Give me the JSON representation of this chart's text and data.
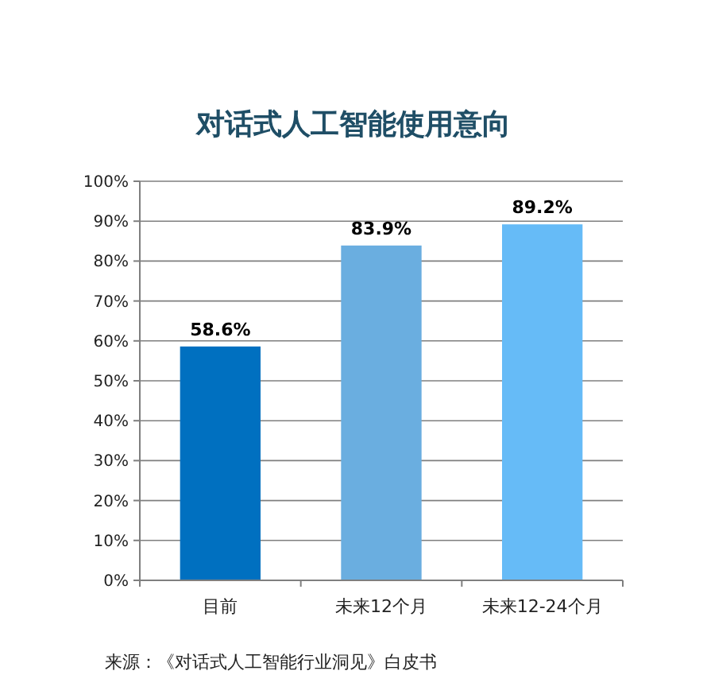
{
  "chart_data": {
    "type": "bar",
    "title": "对话式人工智能使用意向",
    "categories": [
      "目前",
      "未来12个月",
      "未来12-24个月"
    ],
    "values": [
      58.6,
      83.9,
      89.2
    ],
    "colors": [
      "#0070c0",
      "#6aaee0",
      "#66bbf7"
    ],
    "value_labels": [
      "58.6%",
      "83.9%",
      "89.2%"
    ],
    "ylim": [
      0,
      100
    ],
    "yticks": [
      {
        "value": 0,
        "label": "0%"
      },
      {
        "value": 10,
        "label": "10%"
      },
      {
        "value": 20,
        "label": "20%"
      },
      {
        "value": 30,
        "label": "30%"
      },
      {
        "value": 40,
        "label": "40%"
      },
      {
        "value": 50,
        "label": "50%"
      },
      {
        "value": 60,
        "label": "60%"
      },
      {
        "value": 70,
        "label": "70%"
      },
      {
        "value": 80,
        "label": "80%"
      },
      {
        "value": 90,
        "label": "90%"
      },
      {
        "value": 100,
        "label": "100%"
      }
    ],
    "grid": "y",
    "annotations": [
      "来源：《对话式人工智能行业洞见》白皮书"
    ]
  }
}
